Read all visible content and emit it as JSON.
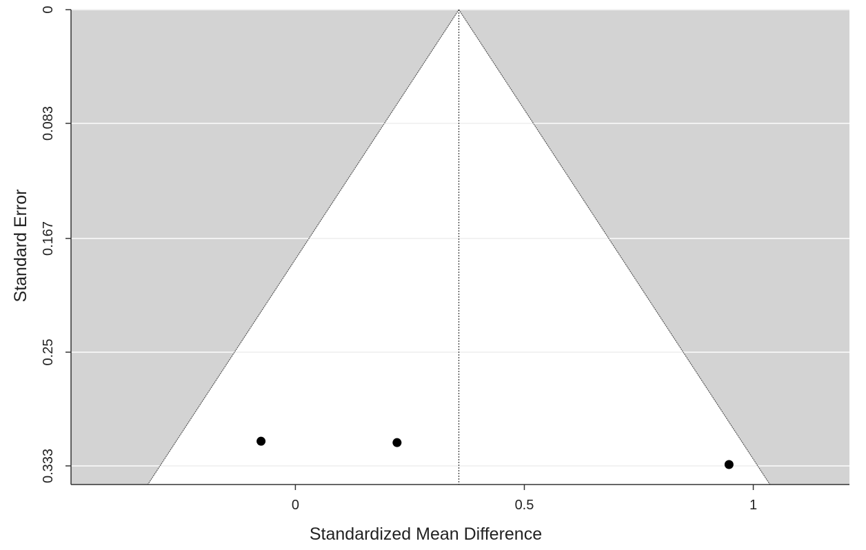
{
  "chart_data": {
    "type": "scatter",
    "subtype": "funnel-plot",
    "title": "",
    "xlabel": "Standardized Mean Difference",
    "ylabel": "Standard Error",
    "xlim": [
      -0.49,
      1.21
    ],
    "ylim": [
      0,
      0.3466
    ],
    "y_reversed": true,
    "x_ticks": [
      0,
      0.5,
      1
    ],
    "x_tick_labels": [
      "0",
      "0.5",
      "1"
    ],
    "y_ticks": [
      0,
      0.083,
      0.167,
      0.25,
      0.333
    ],
    "y_tick_labels": [
      "0",
      "0.083",
      "0.167",
      "0.25",
      "0.333"
    ],
    "summary_effect": 0.357,
    "funnel_multiplier": 1.96,
    "grid": true,
    "colors": {
      "outside_funnel": "#d3d3d3",
      "inside_funnel": "#ffffff",
      "grid_lines": "#f2f2f2",
      "funnel_edges": "#555555",
      "points": "#000000",
      "axis": "#333333"
    },
    "points": [
      {
        "x": -0.075,
        "y": 0.315
      },
      {
        "x": 0.222,
        "y": 0.316
      },
      {
        "x": 0.947,
        "y": 0.332
      }
    ]
  }
}
